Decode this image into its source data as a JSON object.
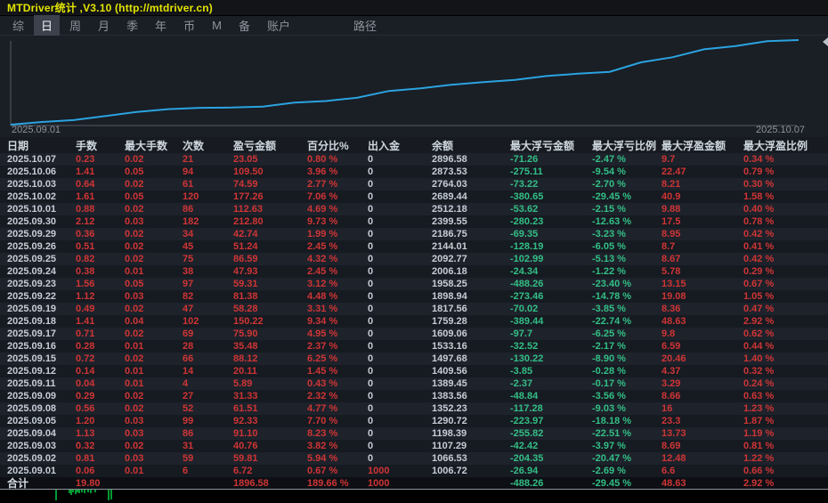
{
  "window": {
    "title": "MTDriver统计 ,V3.10 (http://mtdriver.cn)"
  },
  "menu": {
    "items": [
      {
        "label": "综",
        "selected": false
      },
      {
        "label": "日",
        "selected": true
      },
      {
        "label": "周",
        "selected": false
      },
      {
        "label": "月",
        "selected": false
      },
      {
        "label": "季",
        "selected": false
      },
      {
        "label": "年",
        "selected": false
      },
      {
        "label": "币",
        "selected": false
      },
      {
        "label": "M",
        "selected": false
      },
      {
        "label": "备",
        "selected": false
      },
      {
        "label": "账户",
        "selected": false
      }
    ],
    "path_label": "路径"
  },
  "chart": {
    "start_label": "2025.09.01",
    "end_label": "2025.10.07",
    "line_color": "#2ba3e0",
    "axis_color": "#565b63"
  },
  "chart_data": {
    "type": "line",
    "title": "账户余额曲线 (equity curve)",
    "x": [
      "2025.09.01",
      "2025.09.02",
      "2025.09.03",
      "2025.09.04",
      "2025.09.05",
      "2025.09.08",
      "2025.09.09",
      "2025.09.11",
      "2025.09.12",
      "2025.09.15",
      "2025.09.16",
      "2025.09.17",
      "2025.09.18",
      "2025.09.19",
      "2025.09.22",
      "2025.09.23",
      "2025.09.24",
      "2025.09.25",
      "2025.09.26",
      "2025.09.29",
      "2025.09.30",
      "2025.10.01",
      "2025.10.02",
      "2025.10.03",
      "2025.10.06",
      "2025.10.07"
    ],
    "y": [
      1006.72,
      1066.53,
      1107.29,
      1198.39,
      1290.72,
      1352.23,
      1383.56,
      1389.45,
      1409.56,
      1497.68,
      1533.16,
      1609.06,
      1759.28,
      1817.56,
      1898.94,
      1958.25,
      2006.18,
      2092.77,
      2144.01,
      2186.75,
      2399.55,
      2512.18,
      2689.44,
      2764.03,
      2873.53,
      2896.58
    ],
    "xlabel": "",
    "ylabel": "",
    "ylim": [
      1000,
      2900
    ],
    "legend": [],
    "grid": false
  },
  "table": {
    "columns": [
      "日期",
      "手数",
      "最大手数",
      "次数",
      "盈亏金额",
      "百分比%",
      "出入金",
      "余额",
      "最大浮亏金额",
      "最大浮亏比例",
      "最大浮盈金额",
      "最大浮盈比例"
    ],
    "rows": [
      [
        "2025.10.07",
        "0.23",
        "0.02",
        "21",
        "23.05",
        "0.80 %",
        "0",
        "2896.58",
        "-71.26",
        "-2.47 %",
        "9.7",
        "0.34 %"
      ],
      [
        "2025.10.06",
        "1.41",
        "0.05",
        "94",
        "109.50",
        "3.96 %",
        "0",
        "2873.53",
        "-275.11",
        "-9.54 %",
        "22.47",
        "0.79 %"
      ],
      [
        "2025.10.03",
        "0.64",
        "0.02",
        "61",
        "74.59",
        "2.77 %",
        "0",
        "2764.03",
        "-73.22",
        "-2.70 %",
        "8.21",
        "0.30 %"
      ],
      [
        "2025.10.02",
        "1.61",
        "0.05",
        "120",
        "177.26",
        "7.06 %",
        "0",
        "2689.44",
        "-380.65",
        "-29.45 %",
        "40.9",
        "1.58 %"
      ],
      [
        "2025.10.01",
        "0.88",
        "0.02",
        "86",
        "112.63",
        "4.69 %",
        "0",
        "2512.18",
        "-53.62",
        "-2.15 %",
        "9.88",
        "0.40 %"
      ],
      [
        "2025.09.30",
        "2.12",
        "0.03",
        "182",
        "212.80",
        "9.73 %",
        "0",
        "2399.55",
        "-280.23",
        "-12.63 %",
        "17.5",
        "0.78 %"
      ],
      [
        "2025.09.29",
        "0.36",
        "0.02",
        "34",
        "42.74",
        "1.99 %",
        "0",
        "2186.75",
        "-69.35",
        "-3.23 %",
        "8.95",
        "0.42 %"
      ],
      [
        "2025.09.26",
        "0.51",
        "0.02",
        "45",
        "51.24",
        "2.45 %",
        "0",
        "2144.01",
        "-128.19",
        "-6.05 %",
        "8.7",
        "0.41 %"
      ],
      [
        "2025.09.25",
        "0.82",
        "0.02",
        "75",
        "86.59",
        "4.32 %",
        "0",
        "2092.77",
        "-102.99",
        "-5.13 %",
        "8.67",
        "0.42 %"
      ],
      [
        "2025.09.24",
        "0.38",
        "0.01",
        "38",
        "47.93",
        "2.45 %",
        "0",
        "2006.18",
        "-24.34",
        "-1.22 %",
        "5.78",
        "0.29 %"
      ],
      [
        "2025.09.23",
        "1.56",
        "0.05",
        "97",
        "59.31",
        "3.12 %",
        "0",
        "1958.25",
        "-488.26",
        "-23.40 %",
        "13.15",
        "0.67 %"
      ],
      [
        "2025.09.22",
        "1.12",
        "0.03",
        "82",
        "81.38",
        "4.48 %",
        "0",
        "1898.94",
        "-273.46",
        "-14.78 %",
        "19.08",
        "1.05 %"
      ],
      [
        "2025.09.19",
        "0.49",
        "0.02",
        "47",
        "58.28",
        "3.31 %",
        "0",
        "1817.56",
        "-70.02",
        "-3.85 %",
        "8.36",
        "0.47 %"
      ],
      [
        "2025.09.18",
        "1.41",
        "0.04",
        "102",
        "150.22",
        "9.34 %",
        "0",
        "1759.28",
        "-389.44",
        "-22.74 %",
        "48.63",
        "2.92 %"
      ],
      [
        "2025.09.17",
        "0.71",
        "0.02",
        "69",
        "75.90",
        "4.95 %",
        "0",
        "1609.06",
        "-97.7",
        "-6.25 %",
        "9.8",
        "0.62 %"
      ],
      [
        "2025.09.16",
        "0.28",
        "0.01",
        "28",
        "35.48",
        "2.37 %",
        "0",
        "1533.16",
        "-32.52",
        "-2.17 %",
        "6.59",
        "0.44 %"
      ],
      [
        "2025.09.15",
        "0.72",
        "0.02",
        "66",
        "88.12",
        "6.25 %",
        "0",
        "1497.68",
        "-130.22",
        "-8.90 %",
        "20.46",
        "1.40 %"
      ],
      [
        "2025.09.12",
        "0.14",
        "0.01",
        "14",
        "20.11",
        "1.45 %",
        "0",
        "1409.56",
        "-3.85",
        "-0.28 %",
        "4.37",
        "0.32 %"
      ],
      [
        "2025.09.11",
        "0.04",
        "0.01",
        "4",
        "5.89",
        "0.43 %",
        "0",
        "1389.45",
        "-2.37",
        "-0.17 %",
        "3.29",
        "0.24 %"
      ],
      [
        "2025.09.09",
        "0.29",
        "0.02",
        "27",
        "31.33",
        "2.32 %",
        "0",
        "1383.56",
        "-48.84",
        "-3.56 %",
        "8.66",
        "0.63 %"
      ],
      [
        "2025.09.08",
        "0.56",
        "0.02",
        "52",
        "61.51",
        "4.77 %",
        "0",
        "1352.23",
        "-117.28",
        "-9.03 %",
        "16",
        "1.23 %"
      ],
      [
        "2025.09.05",
        "1.20",
        "0.03",
        "99",
        "92.33",
        "7.70 %",
        "0",
        "1290.72",
        "-223.97",
        "-18.18 %",
        "23.3",
        "1.87 %"
      ],
      [
        "2025.09.04",
        "1.13",
        "0.03",
        "86",
        "91.10",
        "8.23 %",
        "0",
        "1198.39",
        "-255.82",
        "-22.51 %",
        "13.73",
        "1.19 %"
      ],
      [
        "2025.09.03",
        "0.32",
        "0.02",
        "31",
        "40.76",
        "3.82 %",
        "0",
        "1107.29",
        "-42.42",
        "-3.97 %",
        "8.69",
        "0.81 %"
      ],
      [
        "2025.09.02",
        "0.81",
        "0.03",
        "59",
        "59.81",
        "5.94 %",
        "0",
        "1066.53",
        "-204.35",
        "-20.47 %",
        "12.48",
        "1.22 %"
      ],
      [
        "2025.09.01",
        "0.06",
        "0.01",
        "6",
        "6.72",
        "0.67 %",
        "1000",
        "1006.72",
        "-26.94",
        "-2.69 %",
        "6.6",
        "0.66 %"
      ]
    ],
    "total": [
      "合计",
      "19.80",
      "",
      "",
      "1896.58",
      "189.66 %",
      "1000",
      "",
      "-488.26",
      "-29.45 %",
      "48.63",
      "2.92 %"
    ]
  },
  "bottom_strip": {
    "tick_color": "#00cc44",
    "ticks": [
      {
        "x": 63,
        "h": 12
      },
      {
        "x": 78,
        "h": 4
      },
      {
        "x": 80,
        "h": 6
      },
      {
        "x": 82,
        "h": 3
      },
      {
        "x": 85,
        "h": 5
      },
      {
        "x": 87,
        "h": 3
      },
      {
        "x": 89,
        "h": 4
      },
      {
        "x": 92,
        "h": 3
      },
      {
        "x": 95,
        "h": 4
      },
      {
        "x": 99,
        "h": 3
      },
      {
        "x": 102,
        "h": 4
      },
      {
        "x": 107,
        "h": 3
      },
      {
        "x": 122,
        "h": 12
      },
      {
        "x": 125,
        "h": 11
      }
    ]
  },
  "colors": {
    "accent_line": "#2ba3e0",
    "positive_red": "#cf3535",
    "negative_green": "#33bf86",
    "title_yellow": "#e4e400",
    "text_gray": "#c6cdd6"
  }
}
